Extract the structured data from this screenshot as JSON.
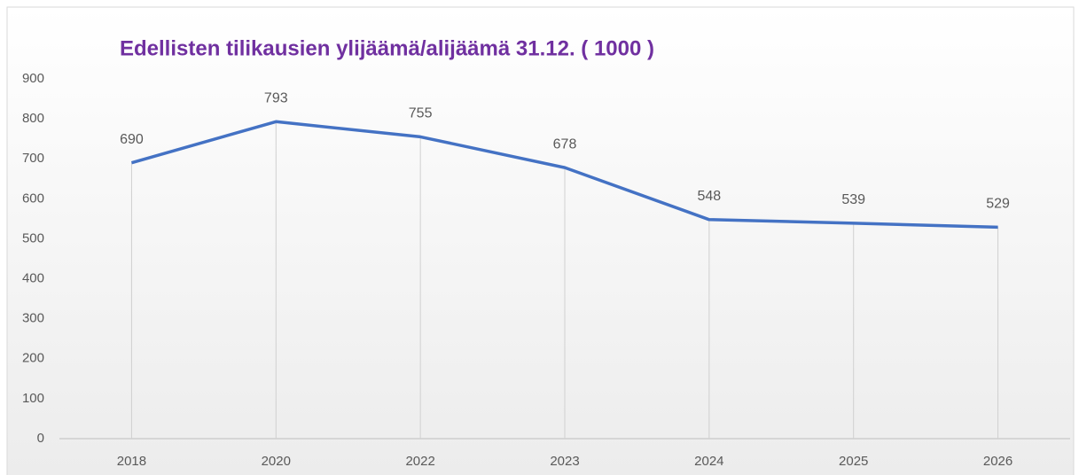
{
  "chart_data": {
    "type": "line",
    "title": "Edellisten tilikausien ylijäämä/alijäämä 31.12. ( 1000 )",
    "categories": [
      "2018",
      "2020",
      "2022",
      "2023",
      "2024",
      "2025",
      "2026"
    ],
    "series": [
      {
        "name": "ylijäämä/alijäämä",
        "color": "#4472c4",
        "values": [
          690,
          793,
          755,
          678,
          548,
          539,
          529
        ]
      }
    ],
    "ylim": [
      0,
      900
    ],
    "yticks": [
      0,
      100,
      200,
      300,
      400,
      500,
      600,
      700,
      800,
      900
    ],
    "drop_lines": true,
    "legend": false
  }
}
